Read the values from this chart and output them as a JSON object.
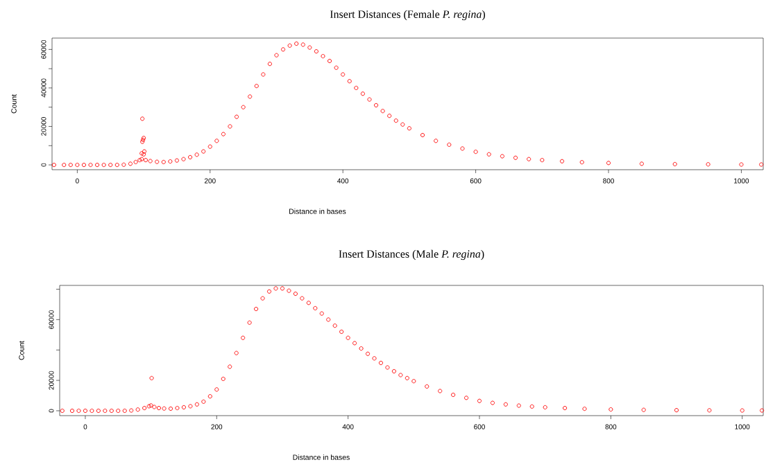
{
  "chart_data": [
    {
      "type": "scatter",
      "title": "Insert Distances (Female *P. regina*)",
      "xlabel": "Distance in bases",
      "ylabel": "Count",
      "marker": "circle",
      "xlim": [
        -38,
        1033
      ],
      "ylim": [
        -2500,
        65900
      ],
      "xticks": [
        0,
        200,
        400,
        600,
        800,
        1000
      ],
      "yticks": [
        0,
        {
          "value": 10000,
          "label": null
        },
        20000,
        {
          "value": 30000,
          "label": null
        },
        40000,
        {
          "value": 50000,
          "label": null
        },
        60000
      ],
      "series": [
        {
          "color": "#ff0000",
          "x": [
            -35,
            -20,
            -10,
            0,
            10,
            20,
            30,
            40,
            50,
            60,
            70,
            80,
            88,
            94,
            97,
            98,
            99,
            98,
            100,
            97,
            101,
            100,
            103,
            110,
            120,
            130,
            140,
            150,
            160,
            170,
            180,
            190,
            200,
            210,
            220,
            230,
            240,
            250,
            260,
            270,
            280,
            290,
            300,
            310,
            320,
            330,
            340,
            350,
            360,
            370,
            380,
            390,
            400,
            410,
            420,
            430,
            440,
            450,
            460,
            470,
            480,
            490,
            500,
            520,
            540,
            560,
            580,
            600,
            620,
            640,
            660,
            680,
            700,
            730,
            760,
            800,
            850,
            900,
            950,
            1000,
            1030
          ],
          "values": [
            0,
            0,
            0,
            0,
            0,
            0,
            0,
            0,
            0,
            0,
            100,
            600,
            1500,
            2500,
            3000,
            24000,
            13000,
            12000,
            14000,
            6000,
            7000,
            5500,
            2500,
            2000,
            1600,
            1500,
            1800,
            2300,
            3000,
            4000,
            5300,
            7000,
            9500,
            12500,
            16000,
            20000,
            25000,
            30000,
            35500,
            41000,
            47000,
            52500,
            57000,
            60000,
            62000,
            63000,
            62500,
            61000,
            59000,
            56500,
            54000,
            50500,
            47000,
            43500,
            40000,
            37000,
            34000,
            31000,
            28000,
            25500,
            23000,
            21000,
            19000,
            15500,
            12500,
            10500,
            8500,
            6800,
            5500,
            4500,
            3700,
            3000,
            2500,
            1900,
            1400,
            1000,
            600,
            400,
            300,
            200,
            200
          ]
        }
      ]
    },
    {
      "type": "scatter",
      "title": "Insert Distances (Male *P. regina*)",
      "xlabel": "Distance in bases",
      "ylabel": "Count",
      "marker": "circle",
      "xlim": [
        -39,
        1032
      ],
      "ylim": [
        -3200,
        82500
      ],
      "xticks": [
        0,
        200,
        400,
        600,
        800,
        1000
      ],
      "yticks": [
        0,
        20000,
        {
          "value": 40000,
          "label": null
        },
        60000,
        {
          "value": 80000,
          "label": null
        }
      ],
      "series": [
        {
          "color": "#ff0000",
          "x": [
            -35,
            -20,
            -10,
            0,
            10,
            20,
            30,
            40,
            50,
            60,
            70,
            80,
            90,
            97,
            100,
            101,
            105,
            112,
            120,
            130,
            140,
            150,
            160,
            170,
            180,
            190,
            200,
            210,
            220,
            230,
            240,
            250,
            260,
            270,
            280,
            290,
            300,
            310,
            320,
            330,
            340,
            350,
            360,
            370,
            380,
            390,
            400,
            410,
            420,
            430,
            440,
            450,
            460,
            470,
            480,
            490,
            500,
            520,
            540,
            560,
            580,
            600,
            620,
            640,
            660,
            680,
            700,
            730,
            760,
            800,
            850,
            900,
            950,
            1000,
            1030
          ],
          "values": [
            0,
            0,
            0,
            0,
            0,
            0,
            0,
            0,
            0,
            0,
            200,
            800,
            1800,
            3000,
            3500,
            21500,
            2500,
            1800,
            1500,
            1400,
            1800,
            2300,
            3000,
            4200,
            6000,
            9500,
            14000,
            21000,
            29000,
            38000,
            48000,
            58000,
            67000,
            74000,
            78500,
            80500,
            80500,
            79000,
            77000,
            74000,
            71000,
            67500,
            64000,
            60000,
            56000,
            52000,
            48000,
            44500,
            41000,
            37500,
            34500,
            31500,
            28500,
            26000,
            23500,
            21500,
            19500,
            16000,
            13000,
            10500,
            8500,
            6500,
            5200,
            4200,
            3400,
            2800,
            2300,
            1800,
            1300,
            900,
            600,
            400,
            300,
            200,
            200
          ]
        }
      ]
    }
  ]
}
